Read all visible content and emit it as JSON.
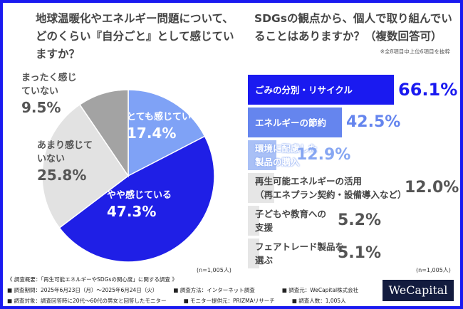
{
  "left": {
    "title": "地球温暖化やエネルギー問題について、どのくらい『自分ごと』として感じていますか？",
    "n": "(n=1,005人)"
  },
  "right": {
    "title": "SDGsの観点から、個人で取り組んでいることはありますか？（複数回答可）",
    "note": "※全8項目中上位6項目を抜粋",
    "n": "(n=1,005人)"
  },
  "chart_data": [
    {
      "type": "pie",
      "start": "12 o'clock",
      "direction": "clockwise",
      "slices": [
        {
          "label": "とても感じている",
          "value": 17.4,
          "display": "17.4%",
          "color": "#7fa2f6",
          "text_color": "#ffffff"
        },
        {
          "label": "やや感じている",
          "value": 47.3,
          "display": "47.3%",
          "color": "#1f1fe6",
          "text_color": "#ffffff"
        },
        {
          "label": "あまり感じていない",
          "value": 25.8,
          "display": "25.8%",
          "color": "#e2e2e2",
          "text_color": "#555555"
        },
        {
          "label": "まったく感じていない",
          "value": 9.5,
          "display": "9.5%",
          "color": "#a3a3a3",
          "text_color": "#555555"
        }
      ]
    },
    {
      "type": "bar",
      "orientation": "horizontal",
      "categories": [
        "ごみの分別・リサイクル",
        "エネルギーの節約",
        "環境に配慮した製品の購入",
        "再生可能エネルギーの活用（再エネプラン契約・設備導入など）",
        "子どもや教育への支援",
        "フェアトレード製品を選ぶ"
      ],
      "label_lines": [
        [
          "ごみの分別・リサイクル"
        ],
        [
          "エネルギーの節約"
        ],
        [
          "環境に配慮した",
          "製品の購入"
        ],
        [
          "再生可能エネルギーの活用",
          "（再エネプラン契約・設備導入など）"
        ],
        [
          "子どもや教育への",
          "支援"
        ],
        [
          "フェアトレード製品を",
          "選ぶ"
        ]
      ],
      "values": [
        66.1,
        42.5,
        12.9,
        12.0,
        5.2,
        5.1
      ],
      "display": [
        "66.1%",
        "42.5%",
        "12.9%",
        "12.0%",
        "5.2%",
        "5.1%"
      ],
      "colors": [
        "#1a1af0",
        "#6585ee",
        "#a9c0f6",
        "#e6e6e6",
        "#e6e6e6",
        "#e6e6e6"
      ],
      "value_colors": [
        "#1a1af0",
        "#6585ee",
        "#86a6f2",
        "#555555",
        "#555555",
        "#555555"
      ],
      "label_colors": [
        "#ffffff",
        "#ffffff",
        "#ffffff",
        "#444444",
        "#444444",
        "#444444"
      ]
    }
  ],
  "footer": {
    "heading": "《 調査概要：「再生可能エネルギーやSDGsの関心度」に関する調査 》",
    "row1": [
      "■ 調査期間：2025年6月23日（月）～2025年6月24日（火）",
      "■ 調査方法：インターネット調査",
      "■ 調査元：WeCapital株式会社"
    ],
    "row2": [
      "■ 調査対象：調査回答時に20代～60代の男女と回答したモニター",
      "■ モニター提供元：PRIZMAリサーチ",
      "■ 調査人数：1,005人"
    ],
    "logo": "WeCapital"
  }
}
